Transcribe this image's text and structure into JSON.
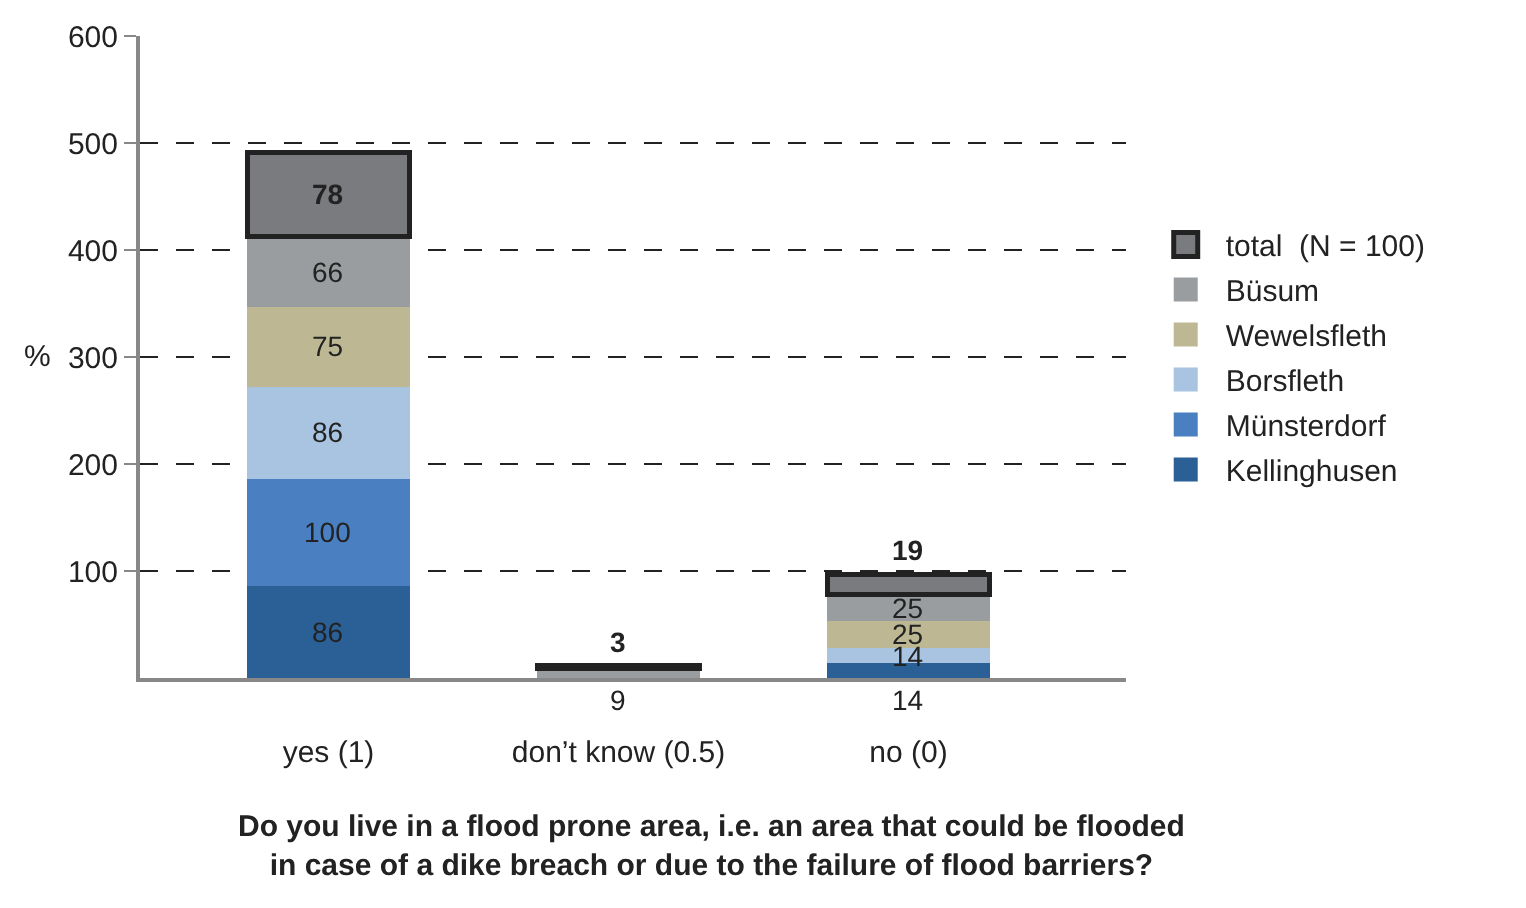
{
  "chart_data": {
    "type": "bar",
    "stacked": true,
    "xlabel": "Do you live in a flood prone area, i.e. an area that could be flooded\nin case of a dike breach or due to the failure of flood barriers?",
    "ylabel": "%",
    "categories": [
      "yes (1)",
      "don’t know (0.5)",
      "no (0)"
    ],
    "series": [
      {
        "name": "Kellinghusen",
        "color": "#2a6096",
        "values": [
          86,
          null,
          14
        ]
      },
      {
        "name": "Münsterdorf",
        "color": "#4a7fc1",
        "values": [
          100,
          null,
          null
        ]
      },
      {
        "name": "Borsfleth",
        "color": "#a8c4e0",
        "values": [
          86,
          null,
          14
        ]
      },
      {
        "name": "Wewelsfleth",
        "color": "#bdb893",
        "values": [
          75,
          null,
          25
        ]
      },
      {
        "name": "Büsum",
        "color": "#9a9d9f",
        "values": [
          66,
          9,
          25
        ]
      },
      {
        "name": "total  (N = 100)",
        "color": "#7a7b7f",
        "values": [
          78,
          3,
          19
        ]
      }
    ],
    "ylim": [
      0,
      600
    ],
    "yticks": [
      100,
      200,
      300,
      400,
      500,
      600
    ],
    "grid": "y",
    "legend": "right",
    "data_labels": true
  }
}
